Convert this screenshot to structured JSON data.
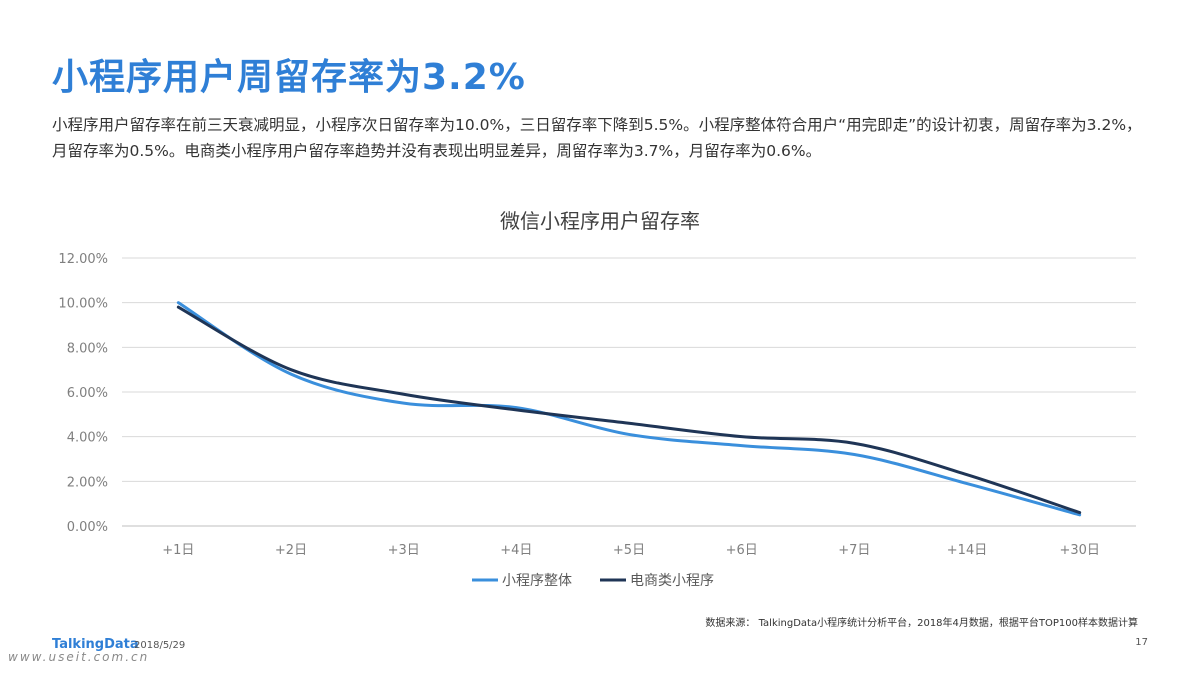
{
  "page": {
    "title": "小程序用户周留存率为3.2%",
    "summary": "小程序用户留存率在前三天衰减明显，小程序次日留存率为10.0%，三日留存率下降到5.5%。小程序整体符合用户“用完即走”的设计初衷，周留存率为3.2%，月留存率为0.5%。电商类小程序用户留存率趋势并没有表现出明显差异，周留存率为3.7%，月留存率为0.6%。",
    "source": "数据来源： TalkingData小程序统计分析平台，2018年4月数据，根据平台TOP100样本数据计算",
    "footer_logo": "TalkingData",
    "footer_date": "2018/5/29",
    "page_number": "17",
    "watermark": "www.useit.com.cn"
  },
  "chart_data": {
    "type": "line",
    "title": "微信小程序用户留存率",
    "xlabel": "",
    "ylabel": "",
    "categories": [
      "+1日",
      "+2日",
      "+3日",
      "+4日",
      "+5日",
      "+6日",
      "+7日",
      "+14日",
      "+30日"
    ],
    "ylim": [
      0,
      12
    ],
    "yticks": [
      "0.00%",
      "2.00%",
      "4.00%",
      "6.00%",
      "8.00%",
      "10.00%",
      "12.00%"
    ],
    "grid": true,
    "legend_position": "bottom",
    "series": [
      {
        "name": "小程序整体",
        "color": "#3a8fdc",
        "values": [
          10.0,
          6.8,
          5.5,
          5.3,
          4.1,
          3.6,
          3.2,
          1.9,
          0.5
        ]
      },
      {
        "name": "电商类小程序",
        "color": "#1f3556",
        "values": [
          9.8,
          7.0,
          5.9,
          5.2,
          4.6,
          4.0,
          3.7,
          2.3,
          0.6
        ]
      }
    ]
  }
}
